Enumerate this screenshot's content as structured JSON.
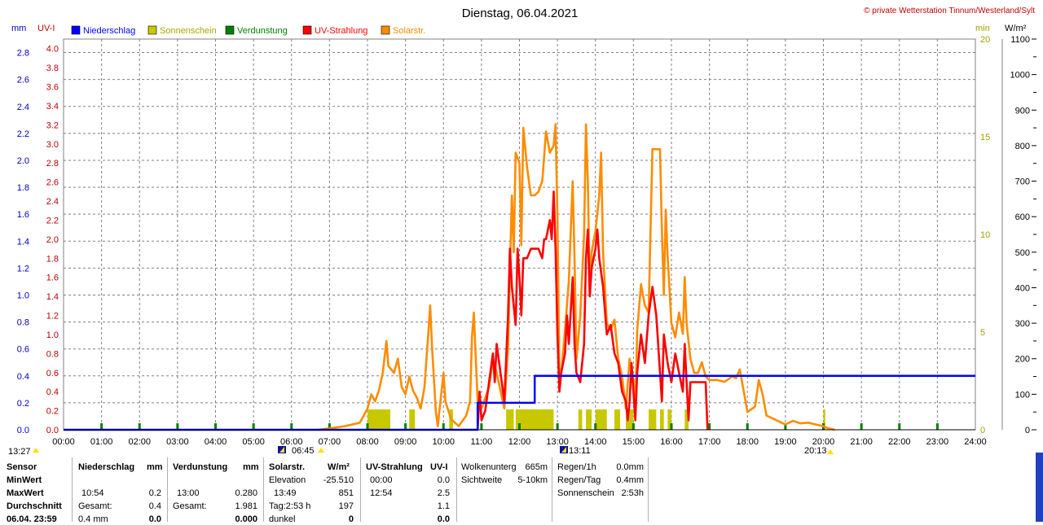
{
  "page": {
    "title": "Dienstag, 06.04.2021",
    "copyright": "© private Wetterstation Tinnum/Westerland/Sylt"
  },
  "axes": {
    "left_unit_mm": "mm",
    "left_unit_uvi": "UV-I",
    "right_unit_min": "min",
    "right_unit_wm2": "W/m²"
  },
  "sun": {
    "moon_time": "13:27",
    "sunrise": "06:45",
    "noon": "13:11",
    "sunset": "20:13"
  },
  "chart_data": {
    "type": "line",
    "title": "Dienstag, 06.04.2021",
    "x_ticks": [
      "00:00",
      "01:00",
      "02:00",
      "03:00",
      "04:00",
      "05:00",
      "06:00",
      "07:00",
      "08:00",
      "09:00",
      "10:00",
      "11:00",
      "12:00",
      "13:00",
      "14:00",
      "15:00",
      "16:00",
      "17:00",
      "18:00",
      "19:00",
      "20:00",
      "21:00",
      "22:00",
      "23:00",
      "24:00"
    ],
    "xlim": [
      0,
      24
    ],
    "ylim_mm": [
      0,
      2.9
    ],
    "ylim_uvi": [
      0,
      4.1
    ],
    "ylim_min": [
      0,
      20
    ],
    "ylim_wm2": [
      0,
      1100
    ],
    "mm_ticks": [
      "0.0",
      "0.2",
      "0.4",
      "0.6",
      "0.8",
      "1.0",
      "1.2",
      "1.4",
      "1.6",
      "1.8",
      "2.0",
      "2.2",
      "2.4",
      "2.6",
      "2.8"
    ],
    "uvi_ticks": [
      "0.0",
      "0.2",
      "0.4",
      "0.6",
      "0.8",
      "1.0",
      "1.2",
      "1.4",
      "1.6",
      "1.8",
      "2.0",
      "2.2",
      "2.4",
      "2.6",
      "2.8",
      "3.0",
      "3.2",
      "3.4",
      "3.6",
      "3.8",
      "4.0"
    ],
    "min_ticks": [
      "0",
      "5",
      "10",
      "15",
      "20"
    ],
    "wm2_ticks": [
      "0",
      "100",
      "200",
      "300",
      "400",
      "500",
      "600",
      "700",
      "800",
      "900",
      "1000",
      "1100"
    ],
    "grid": true,
    "legend_position": "top-left",
    "legend": [
      {
        "name": "Niederschlag",
        "color": "#0000ff"
      },
      {
        "name": "Sonnenschein",
        "color": "#c8c800"
      },
      {
        "name": "Verdunstung",
        "color": "#008000"
      },
      {
        "name": "UV-Strahlung",
        "color": "#ff0000"
      },
      {
        "name": "Solarstr.",
        "color": "#ff8c00"
      }
    ],
    "series": [
      {
        "name": "Niederschlag",
        "axis": "mm",
        "color": "#0000ff",
        "points": [
          [
            0,
            0
          ],
          [
            10.9,
            0
          ],
          [
            10.9,
            0.2
          ],
          [
            12.4,
            0.2
          ],
          [
            12.4,
            0.4
          ],
          [
            24,
            0.4
          ]
        ]
      },
      {
        "name": "Solarstr.",
        "axis": "wm2",
        "color": "#ff8c00",
        "points": [
          [
            6.7,
            0
          ],
          [
            7.0,
            4
          ],
          [
            7.4,
            10
          ],
          [
            7.8,
            20
          ],
          [
            8.0,
            60
          ],
          [
            8.1,
            100
          ],
          [
            8.2,
            80
          ],
          [
            8.3,
            110
          ],
          [
            8.4,
            160
          ],
          [
            8.5,
            250
          ],
          [
            8.55,
            180
          ],
          [
            8.7,
            160
          ],
          [
            8.8,
            200
          ],
          [
            8.9,
            120
          ],
          [
            9.0,
            100
          ],
          [
            9.1,
            150
          ],
          [
            9.2,
            110
          ],
          [
            9.3,
            90
          ],
          [
            9.4,
            60
          ],
          [
            9.5,
            120
          ],
          [
            9.6,
            270
          ],
          [
            9.65,
            350
          ],
          [
            9.7,
            230
          ],
          [
            9.8,
            50
          ],
          [
            9.85,
            10
          ],
          [
            9.9,
            60
          ],
          [
            10.0,
            160
          ],
          [
            10.05,
            80
          ],
          [
            10.2,
            30
          ],
          [
            10.4,
            10
          ],
          [
            10.6,
            40
          ],
          [
            10.7,
            80
          ],
          [
            10.75,
            260
          ],
          [
            10.8,
            330
          ],
          [
            10.85,
            200
          ],
          [
            10.9,
            80
          ],
          [
            11.0,
            60
          ],
          [
            11.2,
            120
          ],
          [
            11.3,
            200
          ],
          [
            11.4,
            160
          ],
          [
            11.6,
            60
          ],
          [
            11.7,
            230
          ],
          [
            11.75,
            450
          ],
          [
            11.8,
            660
          ],
          [
            11.85,
            500
          ],
          [
            11.9,
            780
          ],
          [
            12.0,
            750
          ],
          [
            12.05,
            520
          ],
          [
            12.1,
            850
          ],
          [
            12.2,
            740
          ],
          [
            12.3,
            660
          ],
          [
            12.4,
            660
          ],
          [
            12.5,
            670
          ],
          [
            12.6,
            700
          ],
          [
            12.7,
            840
          ],
          [
            12.8,
            780
          ],
          [
            12.9,
            800
          ],
          [
            12.95,
            860
          ],
          [
            13.0,
            600
          ],
          [
            13.05,
            140
          ],
          [
            13.1,
            160
          ],
          [
            13.2,
            280
          ],
          [
            13.3,
            420
          ],
          [
            13.4,
            700
          ],
          [
            13.45,
            480
          ],
          [
            13.5,
            200
          ],
          [
            13.6,
            320
          ],
          [
            13.7,
            550
          ],
          [
            13.75,
            860
          ],
          [
            13.8,
            700
          ],
          [
            13.85,
            400
          ],
          [
            13.9,
            500
          ],
          [
            14.0,
            560
          ],
          [
            14.1,
            660
          ],
          [
            14.15,
            780
          ],
          [
            14.2,
            500
          ],
          [
            14.3,
            300
          ],
          [
            14.4,
            280
          ],
          [
            14.5,
            310
          ],
          [
            14.6,
            200
          ],
          [
            14.7,
            150
          ],
          [
            14.8,
            60
          ],
          [
            14.9,
            200
          ],
          [
            15.0,
            140
          ],
          [
            15.05,
            50
          ],
          [
            15.1,
            280
          ],
          [
            15.2,
            410
          ],
          [
            15.3,
            350
          ],
          [
            15.4,
            330
          ],
          [
            15.5,
            790
          ],
          [
            15.7,
            790
          ],
          [
            15.75,
            560
          ],
          [
            15.8,
            380
          ],
          [
            15.85,
            620
          ],
          [
            15.9,
            490
          ],
          [
            16.0,
            300
          ],
          [
            16.1,
            260
          ],
          [
            16.2,
            330
          ],
          [
            16.3,
            270
          ],
          [
            16.35,
            430
          ],
          [
            16.4,
            300
          ],
          [
            16.5,
            200
          ],
          [
            16.6,
            160
          ],
          [
            16.7,
            160
          ],
          [
            16.8,
            190
          ],
          [
            16.9,
            150
          ],
          [
            17.0,
            140
          ],
          [
            17.2,
            140
          ],
          [
            17.4,
            135
          ],
          [
            17.6,
            150
          ],
          [
            17.7,
            145
          ],
          [
            17.8,
            170
          ],
          [
            17.9,
            110
          ],
          [
            18.0,
            50
          ],
          [
            18.2,
            65
          ],
          [
            18.3,
            140
          ],
          [
            18.4,
            100
          ],
          [
            18.5,
            40
          ],
          [
            18.7,
            30
          ],
          [
            18.9,
            20
          ],
          [
            19.0,
            15
          ],
          [
            19.2,
            25
          ],
          [
            19.4,
            18
          ],
          [
            19.6,
            20
          ],
          [
            19.8,
            15
          ],
          [
            20.0,
            10
          ],
          [
            20.1,
            5
          ],
          [
            20.3,
            0
          ]
        ]
      },
      {
        "name": "UV-Strahlung",
        "axis": "uvi",
        "color": "#ff0000",
        "points": [
          [
            10.9,
            0
          ],
          [
            10.95,
            0.4
          ],
          [
            11.0,
            0.1
          ],
          [
            11.1,
            0.2
          ],
          [
            11.3,
            0.8
          ],
          [
            11.35,
            0.5
          ],
          [
            11.4,
            0.9
          ],
          [
            11.5,
            0.6
          ],
          [
            11.6,
            0.3
          ],
          [
            11.7,
            1.2
          ],
          [
            11.75,
            1.9
          ],
          [
            11.8,
            1.5
          ],
          [
            11.9,
            1.1
          ],
          [
            11.95,
            1.9
          ],
          [
            12.0,
            1.6
          ],
          [
            12.05,
            1.2
          ],
          [
            12.1,
            1.8
          ],
          [
            12.2,
            1.8
          ],
          [
            12.3,
            1.9
          ],
          [
            12.5,
            1.9
          ],
          [
            12.6,
            1.8
          ],
          [
            12.65,
            2.0
          ],
          [
            12.7,
            2.0
          ],
          [
            12.8,
            2.2
          ],
          [
            12.85,
            2.0
          ],
          [
            12.9,
            2.5
          ],
          [
            12.95,
            1.9
          ],
          [
            13.0,
            1.0
          ],
          [
            13.05,
            0.4
          ],
          [
            13.1,
            0.6
          ],
          [
            13.2,
            0.8
          ],
          [
            13.25,
            1.2
          ],
          [
            13.3,
            0.9
          ],
          [
            13.4,
            1.6
          ],
          [
            13.45,
            0.9
          ],
          [
            13.5,
            0.6
          ],
          [
            13.6,
            0.5
          ],
          [
            13.7,
            0.9
          ],
          [
            13.75,
            1.8
          ],
          [
            13.8,
            2.1
          ],
          [
            13.85,
            1.4
          ],
          [
            13.9,
            1.7
          ],
          [
            14.0,
            1.9
          ],
          [
            14.05,
            2.1
          ],
          [
            14.1,
            1.8
          ],
          [
            14.2,
            1.5
          ],
          [
            14.3,
            1.0
          ],
          [
            14.4,
            1.1
          ],
          [
            14.5,
            0.8
          ],
          [
            14.6,
            0.7
          ],
          [
            14.7,
            0.4
          ],
          [
            14.8,
            0.3
          ],
          [
            14.85,
            0.1
          ],
          [
            14.9,
            0.3
          ],
          [
            14.95,
            0.7
          ],
          [
            15.0,
            0.4
          ],
          [
            15.05,
            0.1
          ],
          [
            15.1,
            0.6
          ],
          [
            15.2,
            1.0
          ],
          [
            15.3,
            0.7
          ],
          [
            15.4,
            1.2
          ],
          [
            15.5,
            1.5
          ],
          [
            15.6,
            1.2
          ],
          [
            15.7,
            0.6
          ],
          [
            15.75,
            0.3
          ],
          [
            15.8,
            1.0
          ],
          [
            15.9,
            0.7
          ],
          [
            16.0,
            0.5
          ],
          [
            16.1,
            0.8
          ],
          [
            16.2,
            0.6
          ],
          [
            16.3,
            0.4
          ],
          [
            16.35,
            0.9
          ],
          [
            16.4,
            0.5
          ],
          [
            16.45,
            0.1
          ],
          [
            16.5,
            0.5
          ],
          [
            16.6,
            0.5
          ],
          [
            16.8,
            0.5
          ],
          [
            16.9,
            0.5
          ],
          [
            16.95,
            0.0
          ]
        ]
      }
    ],
    "sunshine_bars": [
      [
        8.0,
        8.6
      ],
      [
        9.1,
        9.25
      ],
      [
        10.15,
        10.25
      ],
      [
        11.65,
        11.85
      ],
      [
        11.9,
        12.9
      ],
      [
        13.55,
        13.65
      ],
      [
        13.75,
        13.9
      ],
      [
        14.0,
        14.3
      ],
      [
        14.5,
        14.65
      ],
      [
        14.8,
        15.0
      ],
      [
        15.4,
        15.6
      ],
      [
        15.7,
        15.8
      ],
      [
        15.9,
        16.0
      ],
      [
        16.35,
        16.45
      ],
      [
        20.0,
        20.05
      ]
    ]
  },
  "table": {
    "col1": {
      "header": "Sensor",
      "rows": [
        "MinWert",
        "MaxWert",
        "Durchschnitt",
        "06.04. 23:59"
      ]
    },
    "niederschlag": {
      "header": "Niederschlag",
      "unit": "mm",
      "a": [
        "",
        "10:54",
        "Gesamt:",
        "0.4 mm"
      ],
      "b": [
        "",
        "0.2",
        "0.4",
        "0.0"
      ]
    },
    "verdunstung": {
      "header": "Verdunstung",
      "unit": "mm",
      "a": [
        "",
        "13:00",
        "Gesamt:",
        ""
      ],
      "b": [
        "",
        "0.280",
        "1.981",
        "0.000"
      ]
    },
    "solar": {
      "header": "Solarstr.",
      "unit": "W/m²",
      "a": [
        "Elevation",
        "13:49",
        "Tag:2:53 h",
        "dunkel"
      ],
      "b": [
        "-25.510",
        "851",
        "197",
        "0"
      ]
    },
    "uv": {
      "header": "UV-Strahlung",
      "unit": "UV-I",
      "a": [
        "00:00",
        "12:54",
        "",
        ""
      ],
      "b": [
        "0.0",
        "2.5",
        "1.1",
        "0.0"
      ]
    },
    "wolken": {
      "a": [
        "Wolkenunterg",
        "Sichtweite"
      ],
      "b": [
        "665m",
        "5-10km"
      ]
    },
    "regen": {
      "a": [
        "Regen/1h",
        "Regen/Tag",
        "Sonnenschein"
      ],
      "b": [
        "0.0mm",
        "0.4mm",
        "2:53h"
      ]
    }
  }
}
